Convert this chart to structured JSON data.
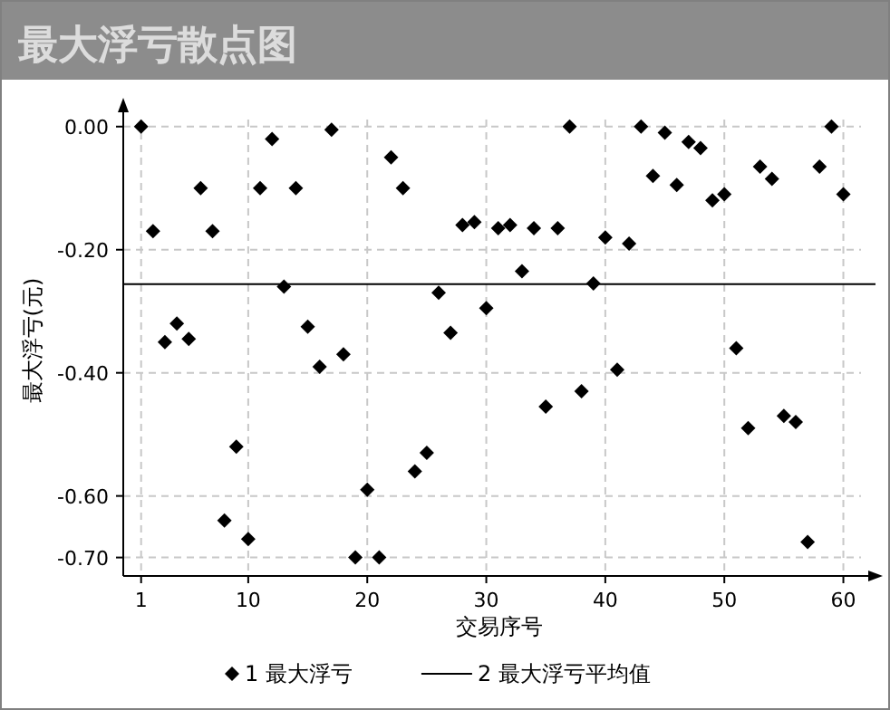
{
  "chart_data": {
    "type": "scatter",
    "title": "最大浮亏散点图",
    "xlabel": "交易序号",
    "ylabel": "最大浮亏(元)",
    "x": [
      1,
      2,
      3,
      4,
      5,
      6,
      7,
      8,
      9,
      10,
      11,
      12,
      13,
      14,
      15,
      16,
      17,
      18,
      19,
      20,
      21,
      22,
      23,
      24,
      25,
      26,
      27,
      28,
      29,
      30,
      31,
      32,
      33,
      34,
      35,
      36,
      37,
      38,
      39,
      40,
      41,
      42,
      43,
      44,
      45,
      46,
      47,
      48,
      49,
      50,
      51,
      52,
      53,
      54,
      55,
      56,
      57,
      58,
      59,
      60
    ],
    "series": [
      {
        "name": "1 最大浮亏",
        "color": "#000000",
        "values": [
          0,
          -0.17,
          -0.35,
          -0.32,
          -0.345,
          -0.1,
          -0.17,
          -0.64,
          -0.52,
          -0.67,
          -0.1,
          -0.02,
          -0.26,
          -0.1,
          -0.325,
          -0.39,
          -0.005,
          -0.37,
          -0.7,
          -0.59,
          -0.7,
          -0.05,
          -0.1,
          -0.56,
          -0.53,
          -0.27,
          -0.335,
          -0.16,
          -0.155,
          -0.295,
          -0.165,
          -0.16,
          -0.235,
          -0.165,
          -0.455,
          -0.165,
          0,
          -0.43,
          -0.255,
          -0.18,
          -0.395,
          -0.19,
          0,
          -0.08,
          -0.01,
          -0.095,
          -0.025,
          -0.035,
          -0.12,
          -0.11,
          -0.36,
          -0.49,
          -0.065,
          -0.085,
          -0.47,
          -0.48,
          -0.675,
          -0.065,
          0,
          -0.11
        ]
      }
    ],
    "ref_lines": [
      {
        "axis": "y",
        "value": -0.256,
        "label": "2 最大浮亏平均值",
        "color": "#000000",
        "line_style": "solid"
      }
    ],
    "xlim": [
      -0.5,
      62.7
    ],
    "ylim": [
      -0.73,
      0.035
    ],
    "xticks": [
      1,
      10,
      20,
      30,
      40,
      50,
      60
    ],
    "yticks": [
      {
        "value": 0,
        "label": "0.00"
      },
      {
        "value": -0.2,
        "label": "-0.20"
      },
      {
        "value": -0.4,
        "label": "-0.40"
      },
      {
        "value": -0.6,
        "label": "-0.60"
      },
      {
        "value": -0.7,
        "label": "-0.70"
      }
    ],
    "grid": true,
    "legend": "bottom",
    "marker": "diamond"
  }
}
